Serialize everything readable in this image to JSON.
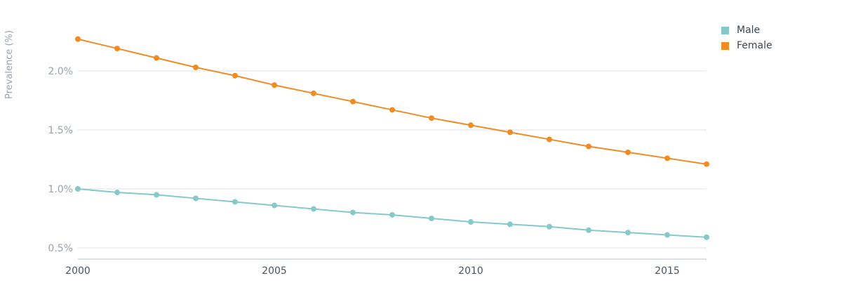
{
  "chart_data": {
    "type": "line",
    "x": [
      2000,
      2001,
      2002,
      2003,
      2004,
      2005,
      2006,
      2007,
      2008,
      2009,
      2010,
      2011,
      2012,
      2013,
      2014,
      2015,
      2016
    ],
    "xlim": [
      2000,
      2016
    ],
    "xticks": [
      2000,
      2005,
      2010,
      2015
    ],
    "ylabel": "Prevalence (%)",
    "ylim": [
      0.4,
      2.35
    ],
    "yticks": [
      0.5,
      1.0,
      1.5,
      2.0
    ],
    "ytick_labels": [
      "0.5%",
      "1.0%",
      "1.5%",
      "2.0%"
    ],
    "grid": true,
    "legend_position": "top-right",
    "series": [
      {
        "name": "Male",
        "color": "#86c9c9",
        "values": [
          1.0,
          0.97,
          0.95,
          0.92,
          0.89,
          0.86,
          0.83,
          0.8,
          0.78,
          0.75,
          0.72,
          0.7,
          0.68,
          0.65,
          0.63,
          0.61,
          0.59
        ]
      },
      {
        "name": "Female",
        "color": "#f28b22",
        "values": [
          2.27,
          2.19,
          2.11,
          2.03,
          1.96,
          1.88,
          1.81,
          1.74,
          1.67,
          1.6,
          1.54,
          1.48,
          1.42,
          1.36,
          1.31,
          1.26,
          1.21
        ]
      }
    ]
  }
}
